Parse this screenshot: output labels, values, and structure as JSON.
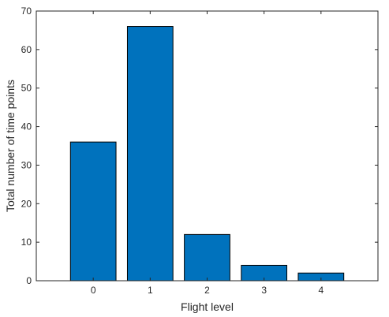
{
  "chart_data": {
    "type": "bar",
    "categories": [
      "0",
      "1",
      "2",
      "3",
      "4"
    ],
    "x": [
      0,
      1,
      2,
      3,
      4
    ],
    "values": [
      36,
      66,
      12,
      4,
      2
    ],
    "xlabel": "Flight level",
    "ylabel": "Total number of time points",
    "xlim": [
      -1,
      5
    ],
    "ylim": [
      0,
      70
    ],
    "yticks": [
      0,
      10,
      20,
      30,
      40,
      50,
      60,
      70
    ],
    "grid": false,
    "bar_color": "#0072BD",
    "edge_color": "#000000"
  }
}
